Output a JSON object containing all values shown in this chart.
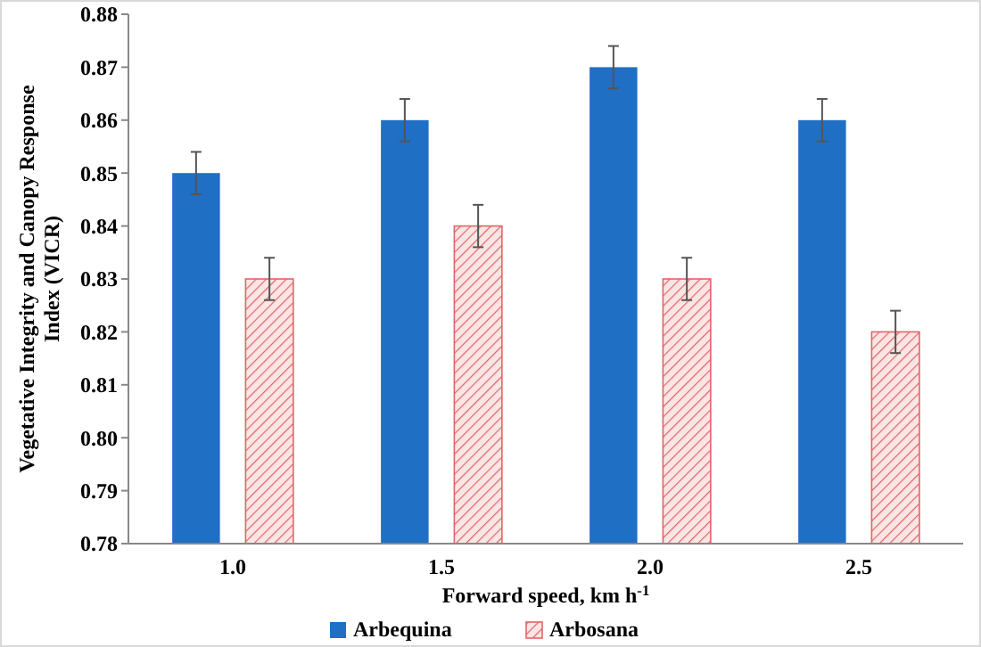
{
  "chart_data": {
    "type": "bar",
    "xlabel": "Forward speed, km h$^{-1}$",
    "ylabel": "Vegetative Integrity and Canopy Response Index (VICR)",
    "categories": [
      "1.0",
      "1.5",
      "2.0",
      "2.5"
    ],
    "series": [
      {
        "name": "Arbequina",
        "color": "#1f6fc5",
        "values": [
          0.85,
          0.86,
          0.87,
          0.86
        ],
        "errors": [
          0.004,
          0.004,
          0.004,
          0.004
        ]
      },
      {
        "name": "Arbosana",
        "color": "#e06666",
        "values": [
          0.83,
          0.84,
          0.83,
          0.82
        ],
        "errors": [
          0.004,
          0.004,
          0.004,
          0.004
        ]
      }
    ],
    "ylim": [
      0.78,
      0.88
    ],
    "yticks": [
      {
        "value": 0.78,
        "label": "0.78"
      },
      {
        "value": 0.79,
        "label": "0.79"
      },
      {
        "value": 0.8,
        "label": "0.80"
      },
      {
        "value": 0.81,
        "label": "0.81"
      },
      {
        "value": 0.82,
        "label": "0.82"
      },
      {
        "value": 0.83,
        "label": "0.83"
      },
      {
        "value": 0.84,
        "label": "0.84"
      },
      {
        "value": 0.85,
        "label": "0.85"
      },
      {
        "value": 0.86,
        "label": "0.86"
      },
      {
        "value": 0.87,
        "label": "0.87"
      },
      {
        "value": 0.88,
        "label": "0.88"
      }
    ],
    "legend": "bottom",
    "grid": false
  }
}
